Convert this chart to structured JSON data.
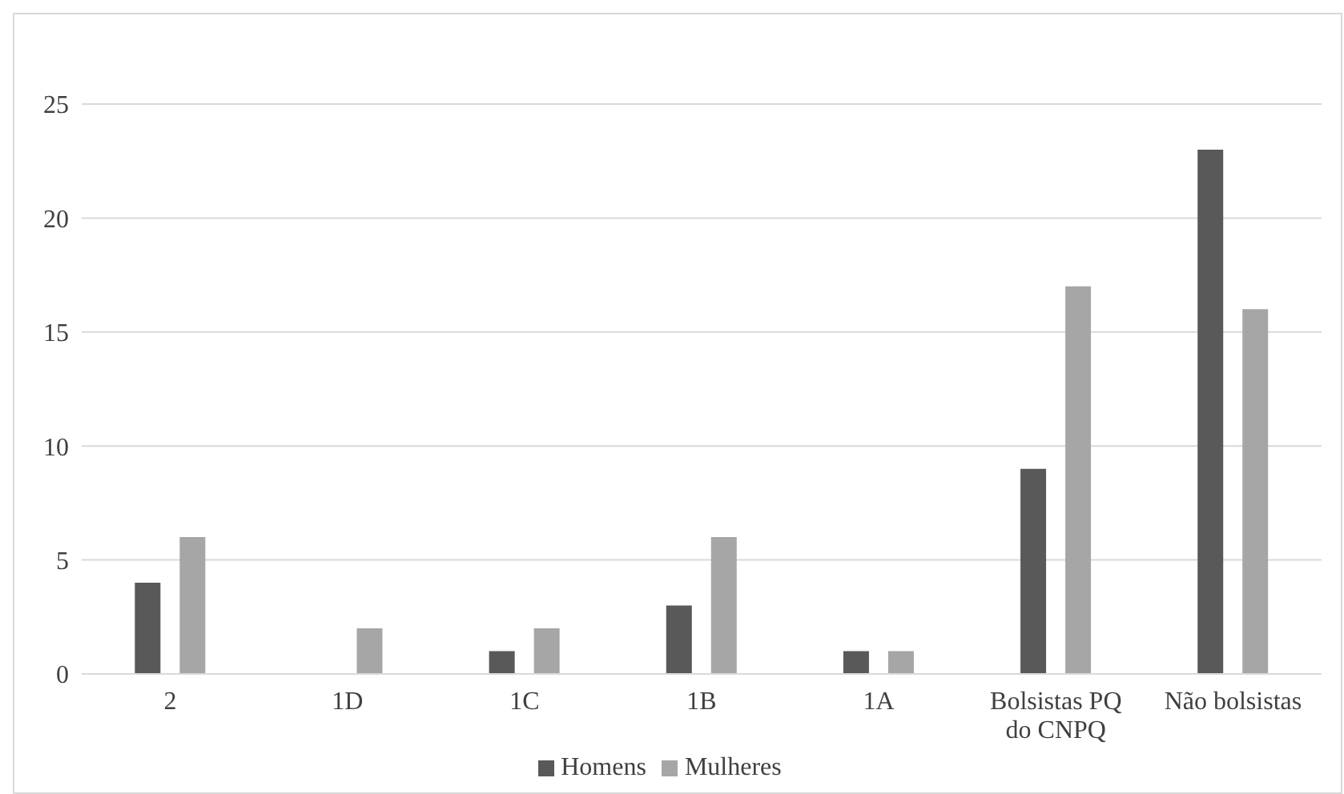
{
  "chart_data": {
    "type": "bar",
    "categories": [
      "2",
      "1D",
      "1C",
      "1B",
      "1A",
      "Bolsistas PQ do CNPQ",
      "Não bolsistas"
    ],
    "series": [
      {
        "name": "Homens",
        "color": "#595959",
        "values": [
          4,
          0,
          1,
          3,
          1,
          9,
          23
        ]
      },
      {
        "name": "Mulheres",
        "color": "#a6a6a6",
        "values": [
          6,
          2,
          2,
          6,
          1,
          17,
          16
        ]
      }
    ],
    "ylim": [
      0,
      25
    ],
    "yticks": [
      0,
      5,
      10,
      15,
      20,
      25
    ],
    "grid": "y",
    "legend": "bottom"
  }
}
